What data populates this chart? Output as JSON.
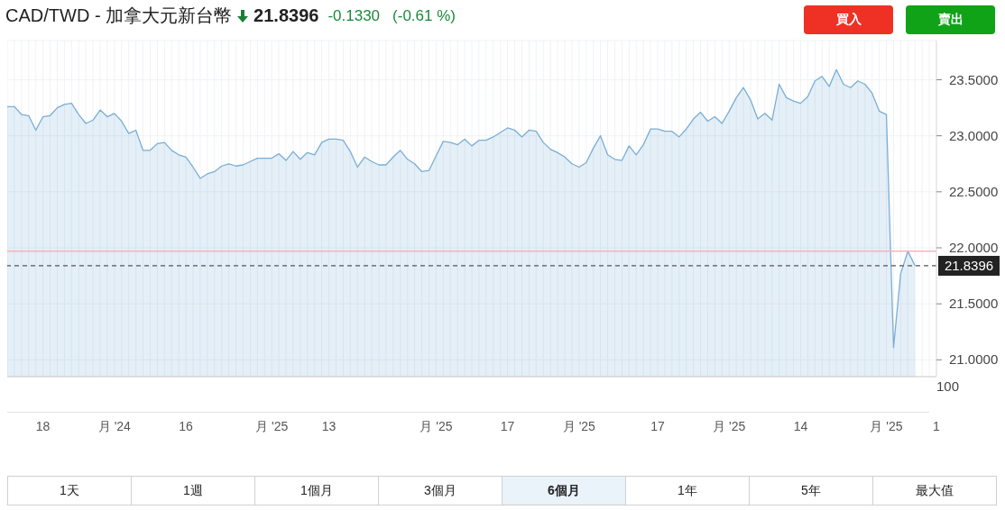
{
  "chart_data": {
    "type": "area",
    "title": "CAD/TWD - 加拿大元新台幣",
    "annotations": [
      "21.8396",
      "-0.1330",
      "(-0.61 %)",
      "買入",
      "賣出",
      "1天",
      "1週",
      "1個月",
      "3個月",
      "6個月",
      "1年",
      "5年",
      "最大值",
      "100"
    ],
    "categories": [
      null,
      null,
      null,
      null,
      null,
      "18",
      null,
      null,
      null,
      null,
      null,
      null,
      null,
      null,
      null,
      "月 '24",
      null,
      null,
      null,
      null,
      null,
      null,
      null,
      null,
      null,
      "16",
      null,
      null,
      null,
      null,
      null,
      null,
      null,
      null,
      null,
      null,
      null,
      "月 '25",
      null,
      null,
      null,
      null,
      null,
      null,
      null,
      "13",
      null,
      null,
      null,
      null,
      null,
      null,
      null,
      null,
      null,
      null,
      null,
      null,
      null,
      null,
      "月 '25",
      null,
      null,
      null,
      null,
      null,
      null,
      null,
      null,
      null,
      "17",
      null,
      null,
      null,
      null,
      null,
      null,
      null,
      null,
      null,
      "月 '25",
      null,
      null,
      null,
      null,
      null,
      null,
      null,
      null,
      null,
      null,
      "17",
      null,
      null,
      null,
      null,
      null,
      null,
      null,
      null,
      null,
      "月 '25",
      null,
      null,
      null,
      null,
      null,
      null,
      null,
      null,
      null,
      "14",
      null,
      null,
      null,
      null,
      null,
      null,
      null,
      null,
      null,
      null,
      null,
      "月 '25",
      null,
      null,
      null,
      null,
      null,
      null,
      "1"
    ],
    "series": [
      {
        "color": "#7aaed6",
        "values": [
          23.26,
          23.26,
          23.19,
          23.18,
          23.05,
          23.17,
          23.18,
          23.25,
          23.28,
          23.29,
          23.19,
          23.11,
          23.14,
          23.23,
          23.17,
          23.2,
          23.13,
          23.02,
          23.05,
          22.87,
          22.87,
          22.93,
          22.94,
          22.87,
          22.83,
          22.81,
          22.72,
          22.62,
          22.66,
          22.68,
          22.73,
          22.75,
          22.73,
          22.74,
          22.77,
          22.8,
          22.8,
          22.8,
          22.84,
          22.78,
          22.86,
          22.79,
          22.85,
          22.83,
          22.94,
          22.97,
          22.97,
          22.96,
          22.86,
          22.72,
          22.81,
          22.77,
          22.74,
          22.74,
          22.81,
          22.87,
          22.79,
          22.75,
          22.68,
          22.69,
          22.82,
          22.95,
          22.94,
          22.92,
          22.97,
          22.91,
          22.96,
          22.96,
          22.99,
          23.03,
          23.07,
          23.05,
          22.99,
          23.05,
          23.04,
          22.94,
          22.88,
          22.85,
          22.81,
          22.75,
          22.72,
          22.76,
          22.89,
          23.0,
          22.83,
          22.79,
          22.78,
          22.91,
          22.83,
          22.92,
          23.06,
          23.06,
          23.04,
          23.04,
          22.99,
          23.06,
          23.15,
          23.21,
          23.13,
          23.17,
          23.11,
          23.22,
          23.34,
          23.43,
          23.32,
          23.15,
          23.2,
          23.14,
          23.46,
          23.34,
          23.31,
          23.29,
          23.35,
          23.49,
          23.53,
          23.44,
          23.59,
          23.46,
          23.43,
          23.49,
          23.46,
          23.38,
          23.22,
          23.19,
          21.11,
          21.77,
          21.97,
          21.84,
          null,
          null,
          null
        ]
      }
    ],
    "ylim": [
      20.85,
      23.85
    ],
    "yticks": [
      {
        "value": 21,
        "label": "21.0000"
      },
      {
        "value": 21.5,
        "label": "21.5000"
      },
      {
        "value": 22,
        "label": "22.0000"
      },
      {
        "value": 22.5,
        "label": "22.5000"
      },
      {
        "value": 23,
        "label": "23.0000"
      },
      {
        "value": 23.5,
        "label": "23.5000"
      }
    ],
    "ref_lines": [
      {
        "axis": "y",
        "value": 21.97,
        "color": "#f4b4ba",
        "line_style": "solid"
      },
      {
        "axis": "y",
        "value": 21.8396,
        "label": "21.8396",
        "color": "#555555",
        "line_style": "dashed"
      }
    ],
    "grid": true,
    "marker": "none",
    "line_style": "solid"
  }
}
